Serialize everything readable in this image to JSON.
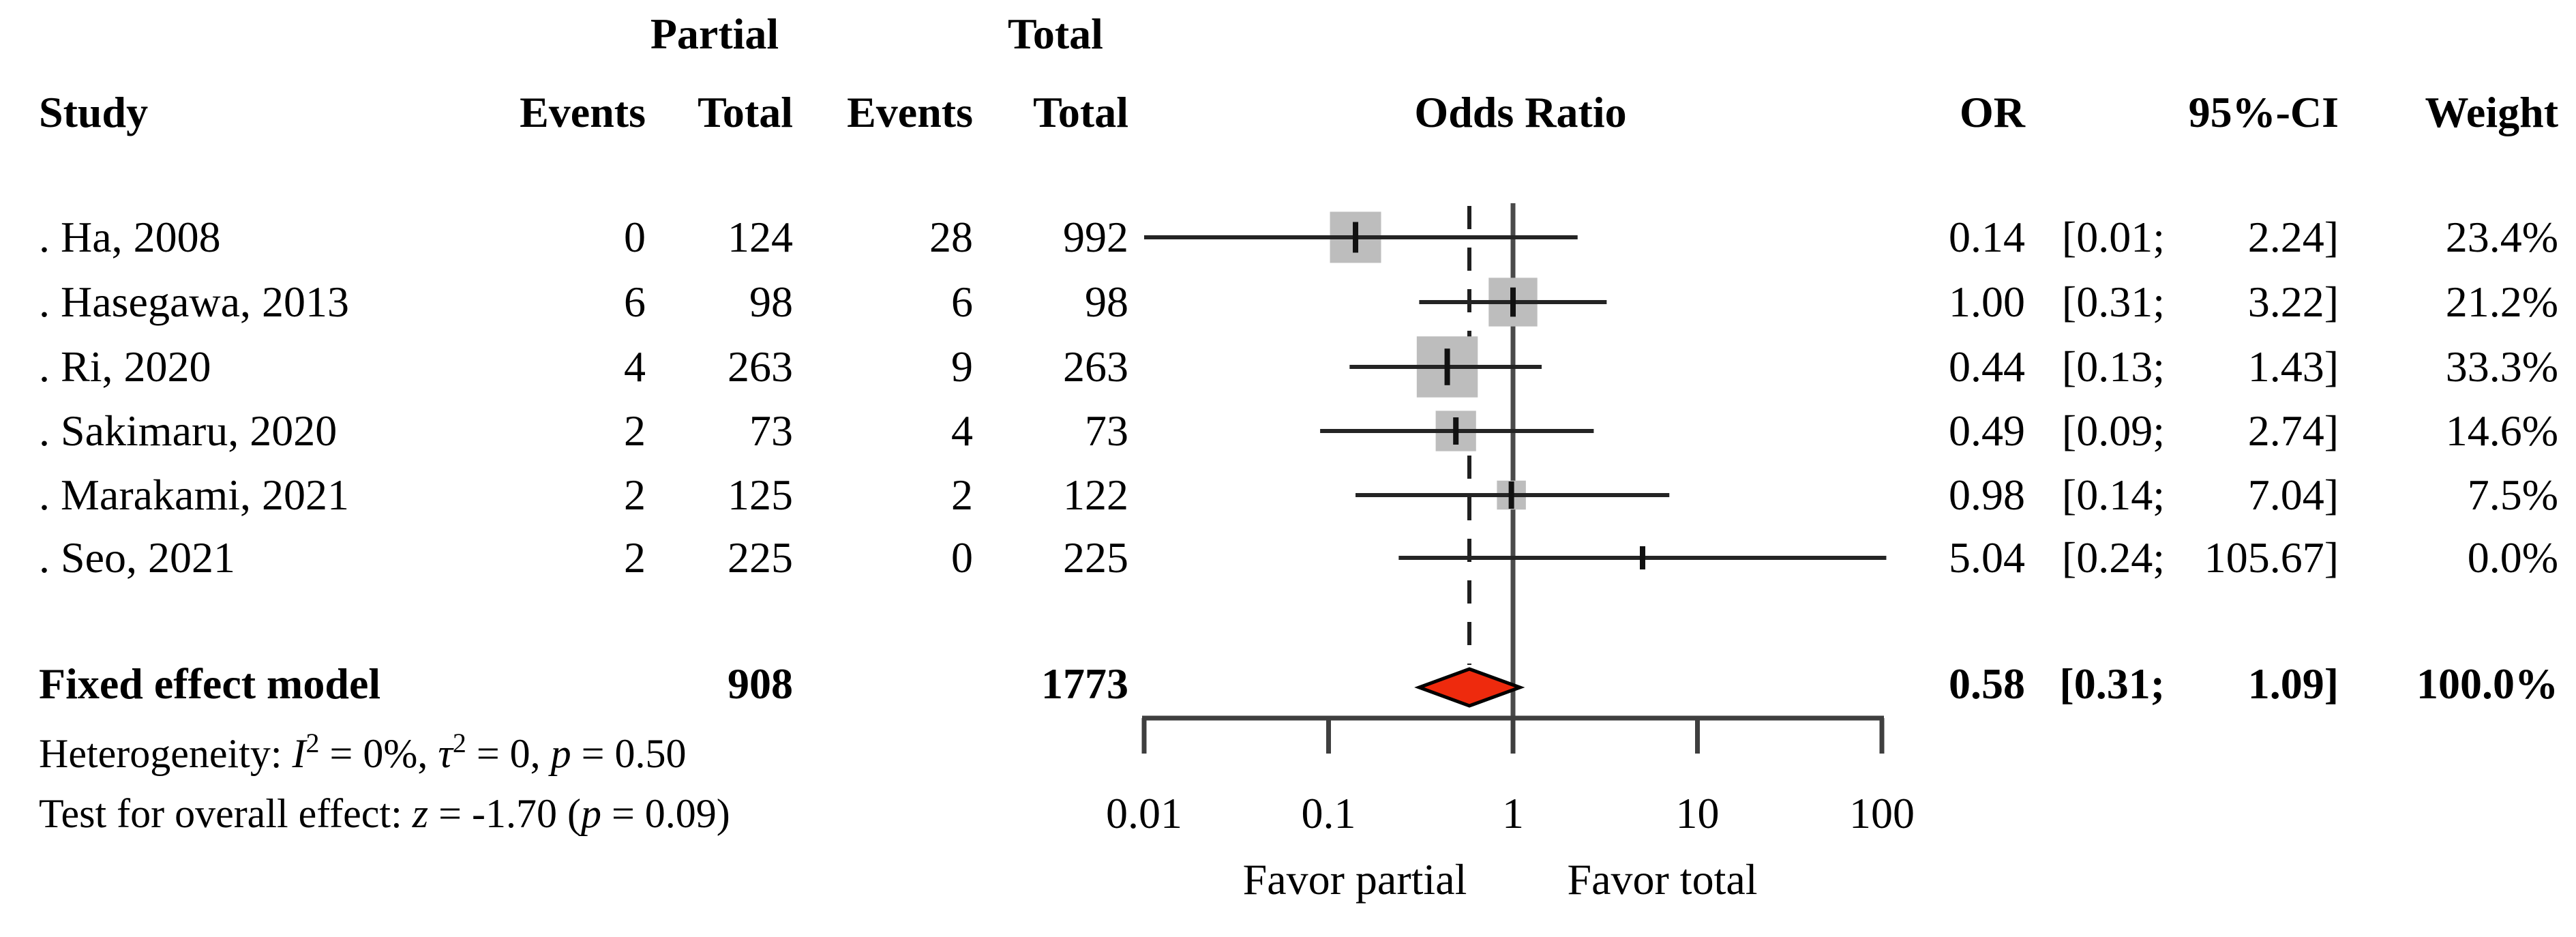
{
  "chart_data": {
    "type": "forest",
    "effect_measure": "Odds Ratio",
    "x_scale": "log10",
    "x_axis": {
      "ticks": [
        {
          "value": 0.01,
          "label": "0.01"
        },
        {
          "value": 0.1,
          "label": "0.1"
        },
        {
          "value": 1,
          "label": "1"
        },
        {
          "value": 10,
          "label": "10"
        },
        {
          "value": 100,
          "label": "100"
        }
      ],
      "favor_left": "Favor partial",
      "favor_right": "Favor total",
      "reference_line": 1.0,
      "pooled_dashed_line": 0.58
    },
    "columns": {
      "study": "Study",
      "group_partial": "Partial",
      "group_total": "Total",
      "events": "Events",
      "total": "Total",
      "plot": "Odds Ratio",
      "or": "OR",
      "ci": "95%-CI",
      "weight": "Weight"
    },
    "studies": [
      {
        "name": ". Ha, 2008",
        "events_partial": "0",
        "total_partial": "124",
        "events_total": "28",
        "total_total": "992",
        "or": 0.14,
        "ci_low": 0.01,
        "ci_high": 2.24,
        "weight_pct": 23.4,
        "or_text": "0.14",
        "ci_low_text": "0.01",
        "ci_high_text": "2.24",
        "weight_text": "23.4%"
      },
      {
        "name": ". Hasegawa, 2013",
        "events_partial": "6",
        "total_partial": "98",
        "events_total": "6",
        "total_total": "98",
        "or": 1.0,
        "ci_low": 0.31,
        "ci_high": 3.22,
        "weight_pct": 21.2,
        "or_text": "1.00",
        "ci_low_text": "0.31",
        "ci_high_text": "3.22",
        "weight_text": "21.2%"
      },
      {
        "name": ". Ri, 2020",
        "events_partial": "4",
        "total_partial": "263",
        "events_total": "9",
        "total_total": "263",
        "or": 0.44,
        "ci_low": 0.13,
        "ci_high": 1.43,
        "weight_pct": 33.3,
        "or_text": "0.44",
        "ci_low_text": "0.13",
        "ci_high_text": "1.43",
        "weight_text": "33.3%"
      },
      {
        "name": ". Sakimaru, 2020",
        "events_partial": "2",
        "total_partial": "73",
        "events_total": "4",
        "total_total": "73",
        "or": 0.49,
        "ci_low": 0.09,
        "ci_high": 2.74,
        "weight_pct": 14.6,
        "or_text": "0.49",
        "ci_low_text": "0.09",
        "ci_high_text": "2.74",
        "weight_text": "14.6%"
      },
      {
        "name": ". Marakami, 2021",
        "events_partial": "2",
        "total_partial": "125",
        "events_total": "2",
        "total_total": "122",
        "or": 0.98,
        "ci_low": 0.14,
        "ci_high": 7.04,
        "weight_pct": 7.5,
        "or_text": "0.98",
        "ci_low_text": "0.14",
        "ci_high_text": "7.04",
        "weight_text": "7.5%"
      },
      {
        "name": ". Seo, 2021",
        "events_partial": "2",
        "total_partial": "225",
        "events_total": "0",
        "total_total": "225",
        "or": 5.04,
        "ci_low": 0.24,
        "ci_high": 105.67,
        "weight_pct": 0.0,
        "or_text": "5.04",
        "ci_low_text": "0.24",
        "ci_high_text": "105.67",
        "weight_text": "0.0%"
      }
    ],
    "summary": {
      "name": "Fixed effect model",
      "total_partial": "908",
      "total_total": "1773",
      "or": 0.58,
      "ci_low": 0.31,
      "ci_high": 1.09,
      "or_text": "0.58",
      "ci_low_text": "0.31",
      "ci_high_text": "1.09",
      "weight_text": "100.0%"
    },
    "footnotes": {
      "heterogeneity": [
        {
          "text": "Heterogeneity: "
        },
        {
          "text": "I",
          "style": "italic"
        },
        {
          "text": "2",
          "style": "sup"
        },
        {
          "text": " = 0%, "
        },
        {
          "text": "τ",
          "style": "italic"
        },
        {
          "text": "2",
          "style": "sup"
        },
        {
          "text": " = 0, "
        },
        {
          "text": "p",
          "style": "italic"
        },
        {
          "text": " = 0.50"
        }
      ],
      "overall_test": [
        {
          "text": "Test for overall effect: "
        },
        {
          "text": "z",
          "style": "italic"
        },
        {
          "text": " = -1.70 ("
        },
        {
          "text": "p",
          "style": "italic"
        },
        {
          "text": " = 0.09)"
        }
      ]
    },
    "colors": {
      "square": "#bdbdbd",
      "ci_line": "#242424",
      "point_marker": "#111111",
      "reference_line": "#4a4a4a",
      "dashed_line": "#1f1f1f",
      "axis": "#3f3f3f",
      "diamond_fill": "#ee2a0d",
      "diamond_stroke": "#000000"
    }
  }
}
